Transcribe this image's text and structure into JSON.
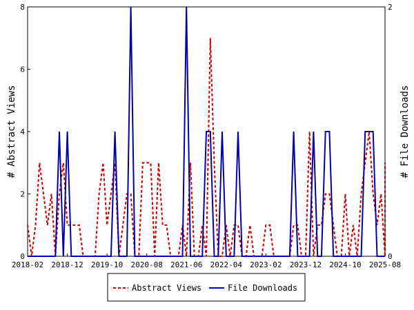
{
  "chart_data": {
    "type": "line",
    "x_tick_labels": [
      "2018-02",
      "2018-12",
      "2019-10",
      "2020-08",
      "2021-06",
      "2022-04",
      "2023-02",
      "2023-12",
      "2024-10",
      "2025-08"
    ],
    "x_range": [
      "2018-02",
      "2025-08"
    ],
    "ylabel_left": "# Abstract Views",
    "ylabel_right": "# File Downloads",
    "ylim_left": [
      0,
      8
    ],
    "ylim_right": [
      0,
      2
    ],
    "yticks_left": [
      0,
      2,
      4,
      6,
      8
    ],
    "yticks_right": [
      0,
      2
    ],
    "legend_position": "bottom-center",
    "series": [
      {
        "name": "Abstract Views",
        "axis": "left",
        "color": "#cc0000",
        "dash": "dashed",
        "points": [
          [
            "2018-02",
            1
          ],
          [
            "2018-03",
            0
          ],
          [
            "2018-04",
            1
          ],
          [
            "2018-05",
            3
          ],
          [
            "2018-06",
            2
          ],
          [
            "2018-07",
            1
          ],
          [
            "2018-08",
            2
          ],
          [
            "2018-09",
            0
          ],
          [
            "2018-10",
            2
          ],
          [
            "2018-11",
            3
          ],
          [
            "2018-12",
            1
          ],
          [
            "2019-01",
            1
          ],
          [
            "2019-02",
            1
          ],
          [
            "2019-03",
            1
          ],
          [
            "2019-04",
            0
          ],
          [
            "2019-05",
            0
          ],
          [
            "2019-06",
            0
          ],
          [
            "2019-07",
            0
          ],
          [
            "2019-08",
            2
          ],
          [
            "2019-09",
            3
          ],
          [
            "2019-10",
            1
          ],
          [
            "2019-11",
            2
          ],
          [
            "2019-12",
            3
          ],
          [
            "2020-01",
            0
          ],
          [
            "2020-02",
            1
          ],
          [
            "2020-03",
            2
          ],
          [
            "2020-04",
            2
          ],
          [
            "2020-05",
            0
          ],
          [
            "2020-06",
            0
          ],
          [
            "2020-07",
            3
          ],
          [
            "2020-08",
            3
          ],
          [
            "2020-09",
            3
          ],
          [
            "2020-10",
            0
          ],
          [
            "2020-11",
            3
          ],
          [
            "2020-12",
            1
          ],
          [
            "2021-01",
            1
          ],
          [
            "2021-02",
            0
          ],
          [
            "2021-03",
            0
          ],
          [
            "2021-04",
            0
          ],
          [
            "2021-05",
            1
          ],
          [
            "2021-06",
            0
          ],
          [
            "2021-07",
            3
          ],
          [
            "2021-08",
            0
          ],
          [
            "2021-09",
            0
          ],
          [
            "2021-10",
            1
          ],
          [
            "2021-11",
            0
          ],
          [
            "2021-12",
            7
          ],
          [
            "2022-01",
            3
          ],
          [
            "2022-02",
            0
          ],
          [
            "2022-03",
            0
          ],
          [
            "2022-04",
            1
          ],
          [
            "2022-05",
            0
          ],
          [
            "2022-06",
            1
          ],
          [
            "2022-07",
            1
          ],
          [
            "2022-08",
            0
          ],
          [
            "2022-09",
            0
          ],
          [
            "2022-10",
            1
          ],
          [
            "2022-11",
            0
          ],
          [
            "2022-12",
            0
          ],
          [
            "2023-01",
            0
          ],
          [
            "2023-02",
            1
          ],
          [
            "2023-03",
            1
          ],
          [
            "2023-04",
            0
          ],
          [
            "2023-05",
            0
          ],
          [
            "2023-06",
            0
          ],
          [
            "2023-07",
            0
          ],
          [
            "2023-08",
            0
          ],
          [
            "2023-09",
            1
          ],
          [
            "2023-10",
            1
          ],
          [
            "2023-11",
            0
          ],
          [
            "2023-12",
            0
          ],
          [
            "2024-01",
            4
          ],
          [
            "2024-02",
            0
          ],
          [
            "2024-03",
            1
          ],
          [
            "2024-04",
            1
          ],
          [
            "2024-05",
            2
          ],
          [
            "2024-06",
            2
          ],
          [
            "2024-07",
            1
          ],
          [
            "2024-08",
            0
          ],
          [
            "2024-09",
            0
          ],
          [
            "2024-10",
            2
          ],
          [
            "2024-11",
            0
          ],
          [
            "2024-12",
            1
          ],
          [
            "2025-01",
            0
          ],
          [
            "2025-02",
            2
          ],
          [
            "2025-03",
            3
          ],
          [
            "2025-04",
            4
          ],
          [
            "2025-05",
            2
          ],
          [
            "2025-06",
            1
          ],
          [
            "2025-07",
            2
          ],
          [
            "2025-08",
            0
          ],
          [
            "2025-08",
            3
          ]
        ]
      },
      {
        "name": "File Downloads",
        "axis": "right",
        "color": "#0000aa",
        "dash": "solid",
        "points": [
          [
            "2018-02",
            0
          ],
          [
            "2018-03",
            0
          ],
          [
            "2018-04",
            0
          ],
          [
            "2018-05",
            0
          ],
          [
            "2018-06",
            0
          ],
          [
            "2018-07",
            0
          ],
          [
            "2018-08",
            0
          ],
          [
            "2018-09",
            0
          ],
          [
            "2018-10",
            1
          ],
          [
            "2018-11",
            0
          ],
          [
            "2018-12",
            1
          ],
          [
            "2019-01",
            0
          ],
          [
            "2019-02",
            0
          ],
          [
            "2019-03",
            0
          ],
          [
            "2019-04",
            0
          ],
          [
            "2019-05",
            0
          ],
          [
            "2019-06",
            0
          ],
          [
            "2019-07",
            0
          ],
          [
            "2019-08",
            0
          ],
          [
            "2019-09",
            0
          ],
          [
            "2019-10",
            0
          ],
          [
            "2019-11",
            0
          ],
          [
            "2019-12",
            1
          ],
          [
            "2020-01",
            0
          ],
          [
            "2020-02",
            0
          ],
          [
            "2020-03",
            0
          ],
          [
            "2020-04",
            2
          ],
          [
            "2020-05",
            0
          ],
          [
            "2020-06",
            0
          ],
          [
            "2020-07",
            0
          ],
          [
            "2020-08",
            0
          ],
          [
            "2020-09",
            0
          ],
          [
            "2020-10",
            0
          ],
          [
            "2020-11",
            0
          ],
          [
            "2020-12",
            0
          ],
          [
            "2021-01",
            0
          ],
          [
            "2021-02",
            0
          ],
          [
            "2021-03",
            0
          ],
          [
            "2021-04",
            0
          ],
          [
            "2021-05",
            0
          ],
          [
            "2021-06",
            2
          ],
          [
            "2021-07",
            0
          ],
          [
            "2021-08",
            0
          ],
          [
            "2021-09",
            0
          ],
          [
            "2021-10",
            0
          ],
          [
            "2021-11",
            1
          ],
          [
            "2021-12",
            1
          ],
          [
            "2022-01",
            0
          ],
          [
            "2022-02",
            0
          ],
          [
            "2022-03",
            1
          ],
          [
            "2022-04",
            0
          ],
          [
            "2022-05",
            0
          ],
          [
            "2022-06",
            0
          ],
          [
            "2022-07",
            1
          ],
          [
            "2022-08",
            0
          ],
          [
            "2022-09",
            0
          ],
          [
            "2022-10",
            0
          ],
          [
            "2022-11",
            0
          ],
          [
            "2022-12",
            0
          ],
          [
            "2023-01",
            0
          ],
          [
            "2023-02",
            0
          ],
          [
            "2023-03",
            0
          ],
          [
            "2023-04",
            0
          ],
          [
            "2023-05",
            0
          ],
          [
            "2023-06",
            0
          ],
          [
            "2023-07",
            0
          ],
          [
            "2023-08",
            0
          ],
          [
            "2023-09",
            1
          ],
          [
            "2023-10",
            0
          ],
          [
            "2023-11",
            0
          ],
          [
            "2023-12",
            0
          ],
          [
            "2024-01",
            0
          ],
          [
            "2024-02",
            1
          ],
          [
            "2024-03",
            0
          ],
          [
            "2024-04",
            0
          ],
          [
            "2024-05",
            1
          ],
          [
            "2024-06",
            1
          ],
          [
            "2024-07",
            0
          ],
          [
            "2024-08",
            0
          ],
          [
            "2024-09",
            0
          ],
          [
            "2024-10",
            0
          ],
          [
            "2024-11",
            0
          ],
          [
            "2024-12",
            0
          ],
          [
            "2025-01",
            0
          ],
          [
            "2025-02",
            0
          ],
          [
            "2025-03",
            1
          ],
          [
            "2025-04",
            1
          ],
          [
            "2025-05",
            1
          ],
          [
            "2025-06",
            0
          ],
          [
            "2025-07",
            0
          ],
          [
            "2025-08",
            0
          ]
        ]
      }
    ]
  }
}
